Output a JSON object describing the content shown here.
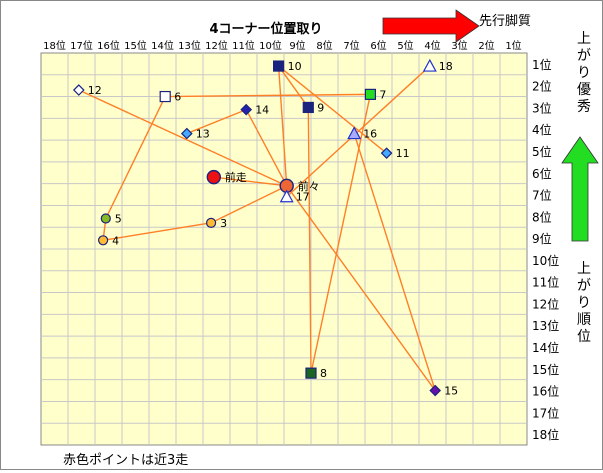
{
  "chart_data": {
    "type": "scatter",
    "title": "4コーナー位置取り",
    "x_axis_labels": [
      "18位",
      "17位",
      "16位",
      "15位",
      "14位",
      "13位",
      "12位",
      "11位",
      "10位",
      "9位",
      "8位",
      "7位",
      "6位",
      "5位",
      "4位",
      "3位",
      "2位",
      "1位"
    ],
    "y_axis_labels": [
      "1位",
      "2位",
      "3位",
      "4位",
      "5位",
      "6位",
      "7位",
      "8位",
      "9位",
      "10位",
      "11位",
      "12位",
      "13位",
      "14位",
      "15位",
      "16位",
      "17位",
      "18位"
    ],
    "xlim": [
      18.5,
      0.5
    ],
    "ylim": [
      0.5,
      18.5
    ],
    "grid": true,
    "points": [
      {
        "label": "10",
        "x": 9.7,
        "y": 1.1,
        "shape": "square",
        "color": "#1a237e"
      },
      {
        "label": "18",
        "x": 4.1,
        "y": 1.1,
        "shape": "triangle",
        "color": "#ffffff"
      },
      {
        "label": "12",
        "x": 17.1,
        "y": 2.2,
        "shape": "diamond",
        "color": "#ffffff"
      },
      {
        "label": "6",
        "x": 13.9,
        "y": 2.5,
        "shape": "square",
        "color": "#ffffff"
      },
      {
        "label": "7",
        "x": 6.3,
        "y": 2.4,
        "shape": "square",
        "color": "#22dd22"
      },
      {
        "label": "9",
        "x": 8.6,
        "y": 3.0,
        "shape": "square",
        "color": "#1a237e"
      },
      {
        "label": "14",
        "x": 10.9,
        "y": 3.1,
        "shape": "diamond",
        "color": "#2222aa"
      },
      {
        "label": "13",
        "x": 13.1,
        "y": 4.2,
        "shape": "diamond",
        "color": "#44aaff"
      },
      {
        "label": "16",
        "x": 6.9,
        "y": 4.2,
        "shape": "triangle",
        "color": "#aaaaff"
      },
      {
        "label": "11",
        "x": 5.7,
        "y": 5.1,
        "shape": "diamond",
        "color": "#44aaff"
      },
      {
        "label": "前走",
        "x": 12.1,
        "y": 6.2,
        "shape": "circle-large",
        "color": "#ee1111"
      },
      {
        "label": "前々",
        "x": 9.4,
        "y": 6.6,
        "shape": "circle-large",
        "color": "#ee6633"
      },
      {
        "label": "17",
        "x": 9.4,
        "y": 7.1,
        "shape": "triangle",
        "color": "#ffffff"
      },
      {
        "label": "5",
        "x": 16.1,
        "y": 8.1,
        "shape": "circle",
        "color": "#88bb22"
      },
      {
        "label": "3",
        "x": 12.2,
        "y": 8.3,
        "shape": "circle",
        "color": "#ffbb33"
      },
      {
        "label": "4",
        "x": 16.2,
        "y": 9.1,
        "shape": "circle",
        "color": "#ffbb33"
      },
      {
        "label": "8",
        "x": 8.5,
        "y": 15.2,
        "shape": "square",
        "color": "#1a6620"
      },
      {
        "label": "15",
        "x": 3.9,
        "y": 16.0,
        "shape": "diamond",
        "color": "#6611aa"
      }
    ],
    "lines": [
      {
        "from": "前走",
        "to": "前々"
      },
      {
        "from": "前々",
        "to": "14"
      },
      {
        "from": "14",
        "to": "13"
      },
      {
        "from": "前々",
        "to": "10"
      },
      {
        "from": "10",
        "to": "11"
      },
      {
        "from": "前々",
        "to": "3"
      },
      {
        "from": "3",
        "to": "4"
      },
      {
        "from": "4",
        "to": "5"
      },
      {
        "from": "5",
        "to": "6"
      },
      {
        "from": "6",
        "to": "7"
      },
      {
        "from": "7",
        "to": "8"
      },
      {
        "from": "前々",
        "to": "12"
      },
      {
        "from": "前々",
        "to": "15"
      },
      {
        "from": "9",
        "to": "8"
      },
      {
        "from": "9",
        "to": "10"
      },
      {
        "from": "17",
        "to": "18"
      },
      {
        "from": "16",
        "to": "15"
      }
    ]
  },
  "labels": {
    "top_arrow": "先行脚質",
    "right_top": "上がり優秀",
    "right_bottom": "上がり順位",
    "footer": "赤色ポイントは近3走"
  },
  "colors": {
    "plot_bg": "#ffffcc",
    "grid": "#c8c8c8",
    "line": "#ff7f27",
    "red_arrow": "#ff0000",
    "green_arrow": "#22dd22"
  }
}
